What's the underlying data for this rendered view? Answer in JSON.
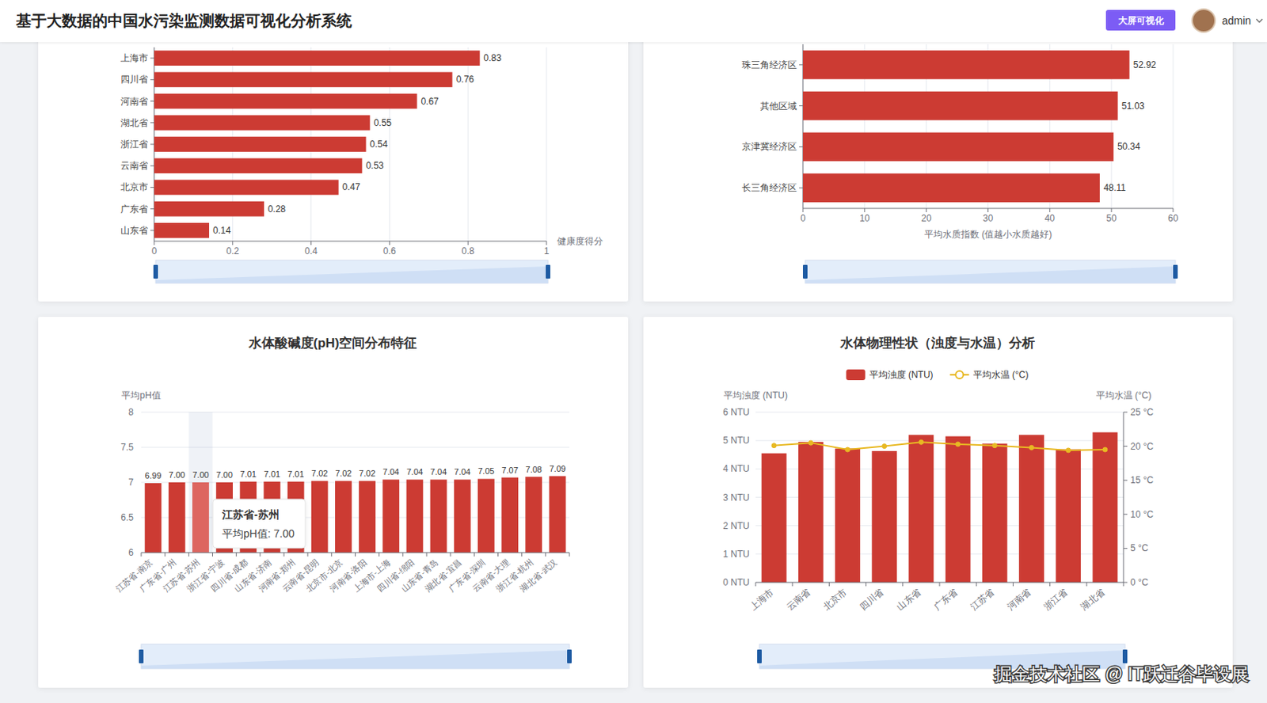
{
  "header": {
    "title": "基于大数据的中国水污染监测数据可视化分析系统",
    "button": "大屏可视化",
    "user": "admin"
  },
  "watermark": "掘金技术社区 @ IT跃迁谷毕设展",
  "chart_data": [
    {
      "type": "bar",
      "orientation": "horizontal",
      "categories": [
        "上海市",
        "四川省",
        "河南省",
        "湖北省",
        "浙江省",
        "云南省",
        "北京市",
        "广东省",
        "山东省"
      ],
      "values": [
        0.83,
        0.76,
        0.67,
        0.55,
        0.54,
        0.53,
        0.47,
        0.28,
        0.14
      ],
      "xlabel": "健康度得分",
      "xlim": [
        0,
        1
      ],
      "xticks": [
        0,
        0.2,
        0.4,
        0.6,
        0.8,
        1
      ],
      "grid": true,
      "data_labels": true,
      "color": "#cc3b33"
    },
    {
      "type": "bar",
      "orientation": "horizontal",
      "categories": [
        "珠三角经济区",
        "其他区域",
        "京津冀经济区",
        "长三角经济区"
      ],
      "values": [
        52.92,
        51.03,
        50.34,
        48.11
      ],
      "xlabel": "平均水质指数 (值越小水质越好)",
      "xlim": [
        0,
        60
      ],
      "xticks": [
        0,
        10,
        20,
        30,
        40,
        50,
        60
      ],
      "grid": true,
      "data_labels": true,
      "color": "#cc3b33"
    },
    {
      "type": "bar",
      "title": "水体酸碱度(pH)空间分布特征",
      "ylabel": "平均pH值",
      "categories": [
        "江苏省-南京",
        "广东省-广州",
        "江苏省-苏州",
        "浙江省-宁波",
        "四川省-成都",
        "山东省-济南",
        "河南省-郑州",
        "云南省-昆明",
        "北京市-北京",
        "河南省-洛阳",
        "上海市-上海",
        "四川省-绵阳",
        "山东省-青岛",
        "湖北省-宜昌",
        "广东省-深圳",
        "云南省-大理",
        "浙江省-杭州",
        "湖北省-武汉"
      ],
      "values": [
        6.99,
        7,
        7,
        7,
        7.01,
        7.01,
        7.01,
        7.02,
        7.02,
        7.02,
        7.04,
        7.04,
        7.04,
        7.04,
        7.05,
        7.07,
        7.08,
        7.09
      ],
      "value_labels": [
        "6.99",
        "7.00",
        "7.00",
        "7.00",
        "7.01",
        "7.01",
        "7.01",
        "7.02",
        "7.02",
        "7.02",
        "7.04",
        "7.04",
        "7.04",
        "7.04",
        "7.05",
        "7.07",
        "7.08",
        "7.09"
      ],
      "ylim": [
        6,
        8
      ],
      "yticks": [
        6,
        6.5,
        7,
        7.5,
        8
      ],
      "grid": true,
      "data_labels": true,
      "color": "#cc3b33",
      "tooltip": {
        "title": "江苏省-苏州",
        "text": "平均pH值: 7.00"
      }
    },
    {
      "type": "bar",
      "title": "水体物理性状（浊度与水温）分析",
      "categories": [
        "上海市",
        "云南省",
        "北京市",
        "四川省",
        "山东省",
        "广东省",
        "江苏省",
        "河南省",
        "浙江省",
        "湖北省"
      ],
      "series": [
        {
          "name": "平均浊度 (NTU)",
          "type": "bar",
          "color": "#cc3b33",
          "values": [
            4.55,
            4.95,
            4.72,
            4.63,
            5.2,
            5.15,
            4.89,
            5.2,
            4.69,
            5.29
          ]
        },
        {
          "name": "平均水温 (°C)",
          "type": "line",
          "color": "#e8b923",
          "marker": "circle",
          "axis": "y2",
          "values": [
            20.1,
            20.5,
            19.5,
            20,
            20.6,
            20.3,
            20.1,
            19.8,
            19.4,
            19.5
          ]
        }
      ],
      "ylabel": "平均浊度 (NTU)",
      "y2label": "平均水温 (°C)",
      "ylim": [
        0,
        6
      ],
      "yticks": [
        {
          "value": 0,
          "label": "0 NTU"
        },
        {
          "value": 1,
          "label": "1 NTU"
        },
        {
          "value": 2,
          "label": "2 NTU"
        },
        {
          "value": 3,
          "label": "3 NTU"
        },
        {
          "value": 4,
          "label": "4 NTU"
        },
        {
          "value": 5,
          "label": "5 NTU"
        },
        {
          "value": 6,
          "label": "6 NTU"
        }
      ],
      "y2lim": [
        0,
        25
      ],
      "y2ticks": [
        {
          "value": 0,
          "label": "0 °C"
        },
        {
          "value": 5,
          "label": "5 °C"
        },
        {
          "value": 10,
          "label": "10 °C"
        },
        {
          "value": 15,
          "label": "15 °C"
        },
        {
          "value": 20,
          "label": "20 °C"
        },
        {
          "value": 25,
          "label": "25 °C"
        }
      ],
      "grid": true,
      "legend": "top"
    }
  ]
}
